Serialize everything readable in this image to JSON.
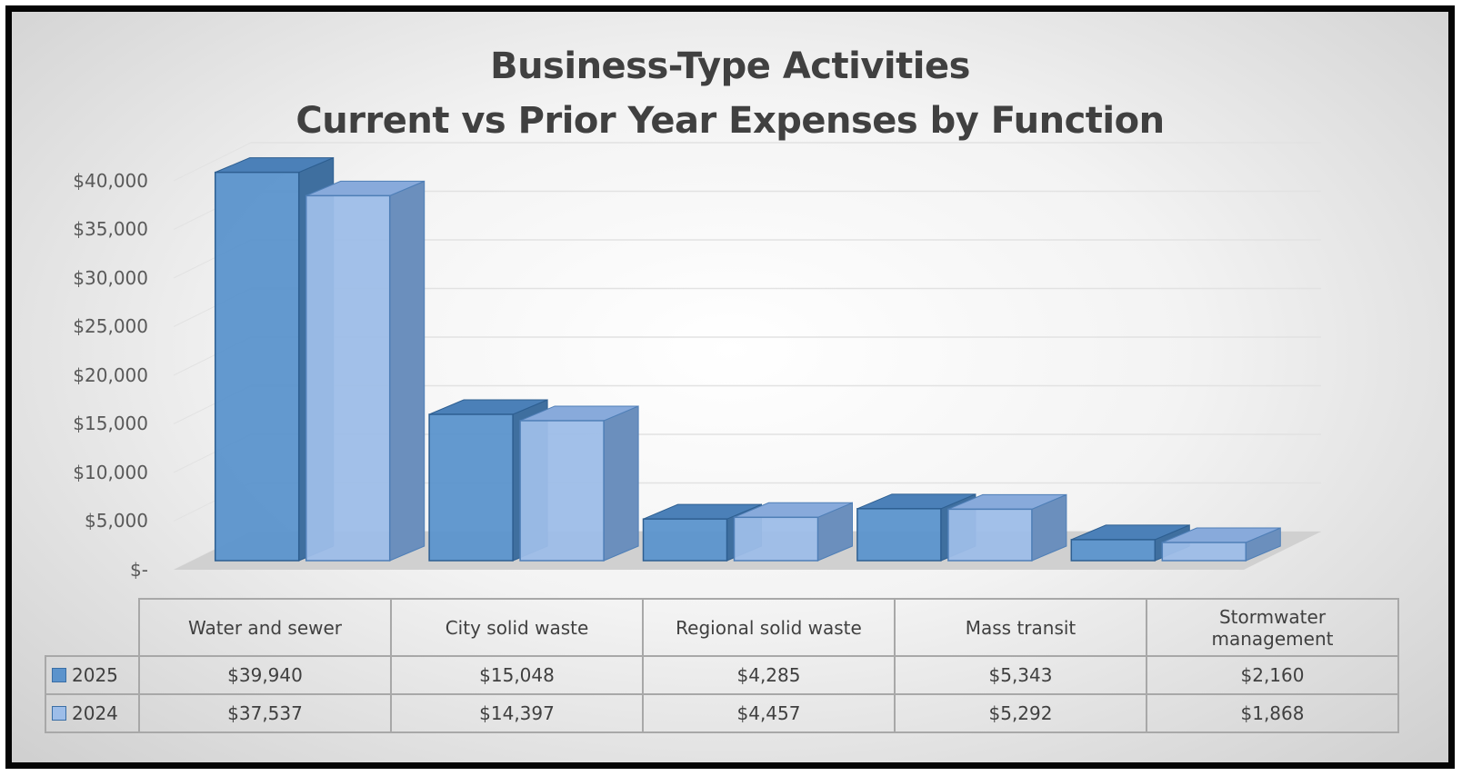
{
  "chart_data": {
    "type": "bar",
    "title": "Business-Type Activities",
    "subtitle": "Current vs Prior Year Expenses by Function",
    "categories": [
      "Water and sewer",
      "City solid waste",
      "Regional solid waste",
      "Mass transit",
      "Stormwater management"
    ],
    "series": [
      {
        "name": "2025",
        "values": [
          39940,
          15048,
          4285,
          5343,
          2160
        ],
        "labels": [
          "$39,940",
          "$15,048",
          "$4,285",
          "$5,343",
          "$2,160"
        ],
        "color": "#5b93cc"
      },
      {
        "name": "2024",
        "values": [
          37537,
          14397,
          4457,
          5292,
          1868
        ],
        "labels": [
          "$37,537",
          "$14,397",
          "$4,457",
          "$5,292",
          "$1,868"
        ],
        "color": "#9dbde8"
      }
    ],
    "ylim": [
      0,
      40000
    ],
    "ytick_labels": [
      "$-",
      "$5,000",
      "$10,000",
      "$15,000",
      "$20,000",
      "$25,000",
      "$30,000",
      "$35,000",
      "$40,000"
    ],
    "xlabel": "",
    "ylabel": "",
    "grid": true,
    "legend": "data-table",
    "style": "3d-clustered-column"
  }
}
